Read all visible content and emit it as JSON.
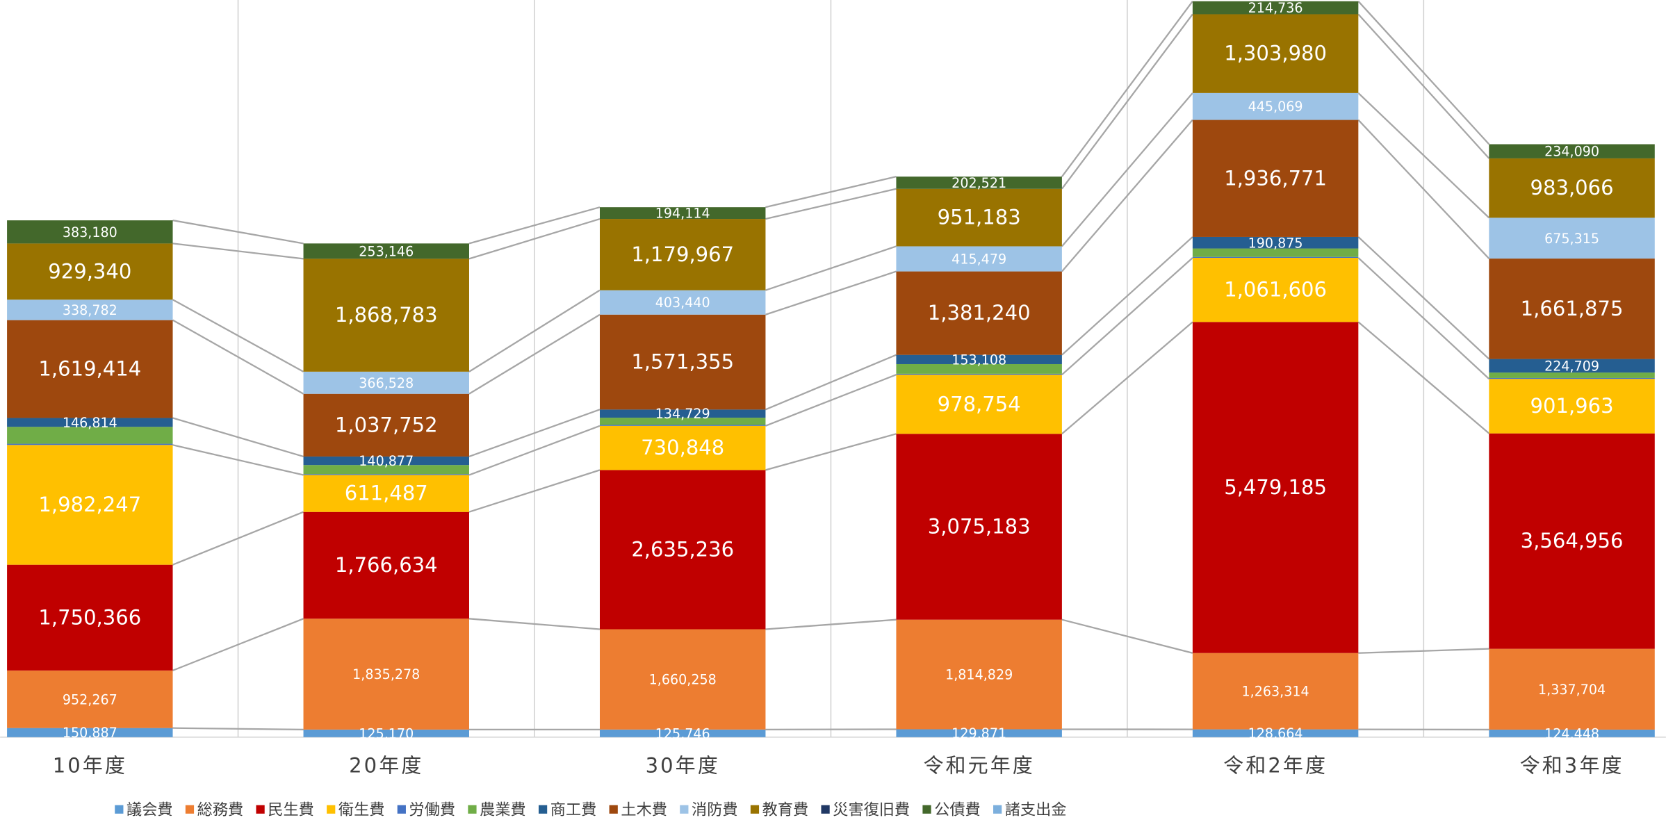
{
  "chart_data": {
    "type": "stacked_bar",
    "categories": [
      "10年度",
      "20年度",
      "30年度",
      "令和元年度",
      "令和2年度",
      "令和3年度"
    ],
    "ylim": [
      0,
      12200000
    ],
    "grid": true,
    "legend": "bottom",
    "series": [
      {
        "name": "議会費",
        "color": "#5b9bd5",
        "values": [
          150887,
          125170,
          125746,
          129871,
          128664,
          124448
        ],
        "value_labels": [
          "150,887",
          "125,170",
          "125,746",
          "129,871",
          "128,664",
          "124,448"
        ]
      },
      {
        "name": "総務費",
        "color": "#ed7d31",
        "values": [
          952267,
          1835278,
          1660258,
          1814829,
          1263314,
          1337704
        ],
        "value_labels": [
          "952,267",
          "1,835,278",
          "1,660,258",
          "1,814,829",
          "1,263,314",
          "1,337,704"
        ]
      },
      {
        "name": "民生費",
        "color": "#c00000",
        "values": [
          1750366,
          1766634,
          2635236,
          3075183,
          5479185,
          3564956
        ],
        "value_labels": [
          "1,750,366",
          "1,766,634",
          "2,635,236",
          "3,075,183",
          "5,479,185",
          "3,564,956"
        ]
      },
      {
        "name": "衛生費",
        "color": "#ffc000",
        "values": [
          1982247,
          611487,
          730848,
          978754,
          1061606,
          901963
        ],
        "value_labels": [
          "1,982,247",
          "611,487",
          "730,848",
          "978,754",
          "1,061,606",
          "901,963"
        ]
      },
      {
        "name": "労働費",
        "color": "#4472c4",
        "values": [
          20000,
          15000,
          15000,
          15000,
          15000,
          15000
        ]
      },
      {
        "name": "農業費",
        "color": "#70ad47",
        "values": [
          280000,
          150000,
          120000,
          160000,
          140000,
          90000
        ]
      },
      {
        "name": "商工費",
        "color": "#255e91",
        "values": [
          146814,
          140877,
          134729,
          153108,
          190875,
          224709
        ],
        "value_labels": [
          "146,814",
          "140,877",
          "134,729",
          "153,108",
          "190,875",
          "224,709"
        ]
      },
      {
        "name": "土木費",
        "color": "#9e480e",
        "values": [
          1619414,
          1037752,
          1571355,
          1381240,
          1936771,
          1661875
        ],
        "value_labels": [
          "1,619,414",
          "1,037,752",
          "1,571,355",
          "1,381,240",
          "1,936,771",
          "1,661,875"
        ]
      },
      {
        "name": "消防費",
        "color": "#9dc3e6",
        "values": [
          338782,
          366528,
          403440,
          415479,
          445069,
          675315
        ],
        "value_labels": [
          "338,782",
          "366,528",
          "403,440",
          "415,479",
          "445,069",
          "675,315"
        ]
      },
      {
        "name": "教育費",
        "color": "#997300",
        "values": [
          929340,
          1868783,
          1179967,
          951183,
          1303980,
          983066
        ],
        "value_labels": [
          "929,340",
          "1,868,783",
          "1,179,967",
          "951,183",
          "1,303,980",
          "983,066"
        ]
      },
      {
        "name": "災害復旧費",
        "color": "#203864",
        "values": [
          0,
          0,
          0,
          0,
          0,
          0
        ]
      },
      {
        "name": "公債費",
        "color": "#43682b",
        "values": [
          383180,
          253146,
          194114,
          202521,
          214736,
          234090
        ],
        "value_labels": [
          "383,180",
          "253,146",
          "194,114",
          "202,521",
          "214,736",
          "234,090"
        ]
      },
      {
        "name": "諸支出金",
        "color": "#7cafdd",
        "values": [
          0,
          0,
          0,
          0,
          0,
          0
        ]
      }
    ]
  }
}
